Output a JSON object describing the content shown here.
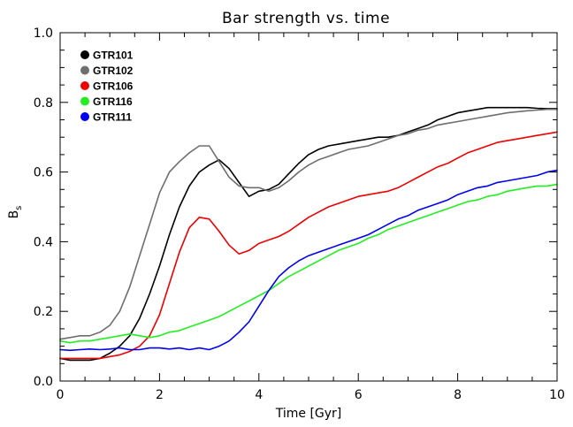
{
  "chart_data": {
    "type": "line",
    "title": "Bar strength vs. time",
    "xlabel": "Time [Gyr]",
    "ylabel": "B",
    "ylabel_sub": "s",
    "xlim": [
      0,
      10
    ],
    "ylim": [
      0,
      1.0
    ],
    "xticks": [
      0,
      2,
      4,
      6,
      8,
      10
    ],
    "xtick_labels": [
      "0",
      "2",
      "4",
      "6",
      "8",
      "10"
    ],
    "yticks": [
      0.0,
      0.2,
      0.4,
      0.6,
      0.8,
      1.0
    ],
    "ytick_labels": [
      "0.0",
      "0.2",
      "0.4",
      "0.6",
      "0.8",
      "1.0"
    ],
    "grid": false,
    "legend_position": "top-left",
    "series": [
      {
        "name": "GTR101",
        "color": "#000000",
        "x": [
          0,
          0.2,
          0.4,
          0.6,
          0.8,
          1.0,
          1.2,
          1.4,
          1.6,
          1.8,
          2.0,
          2.2,
          2.4,
          2.6,
          2.8,
          3.0,
          3.2,
          3.4,
          3.6,
          3.8,
          4.0,
          4.2,
          4.4,
          4.6,
          4.8,
          5.0,
          5.2,
          5.4,
          5.6,
          5.8,
          6.0,
          6.2,
          6.4,
          6.6,
          6.8,
          7.0,
          7.2,
          7.4,
          7.6,
          7.8,
          8.0,
          8.2,
          8.4,
          8.6,
          8.8,
          9.0,
          9.2,
          9.4,
          9.6,
          9.8,
          10.0
        ],
        "y": [
          0.065,
          0.06,
          0.06,
          0.06,
          0.065,
          0.08,
          0.1,
          0.13,
          0.18,
          0.25,
          0.33,
          0.42,
          0.5,
          0.56,
          0.6,
          0.62,
          0.635,
          0.61,
          0.57,
          0.53,
          0.545,
          0.55,
          0.565,
          0.595,
          0.625,
          0.65,
          0.665,
          0.675,
          0.68,
          0.685,
          0.69,
          0.695,
          0.7,
          0.7,
          0.705,
          0.715,
          0.725,
          0.735,
          0.75,
          0.76,
          0.77,
          0.775,
          0.78,
          0.785,
          0.785,
          0.785,
          0.785,
          0.785,
          0.783,
          0.782,
          0.782
        ]
      },
      {
        "name": "GTR102",
        "color": "#6e6e6e",
        "x": [
          0,
          0.2,
          0.4,
          0.6,
          0.8,
          1.0,
          1.2,
          1.4,
          1.6,
          1.8,
          2.0,
          2.2,
          2.4,
          2.6,
          2.8,
          3.0,
          3.2,
          3.4,
          3.6,
          3.8,
          4.0,
          4.2,
          4.4,
          4.6,
          4.8,
          5.0,
          5.2,
          5.4,
          5.6,
          5.8,
          6.0,
          6.2,
          6.4,
          6.6,
          6.8,
          7.0,
          7.2,
          7.4,
          7.6,
          7.8,
          8.0,
          8.2,
          8.4,
          8.6,
          8.8,
          9.0,
          9.2,
          9.4,
          9.6,
          9.8,
          10.0
        ],
        "y": [
          0.12,
          0.125,
          0.13,
          0.13,
          0.14,
          0.16,
          0.2,
          0.27,
          0.36,
          0.45,
          0.54,
          0.6,
          0.63,
          0.655,
          0.675,
          0.675,
          0.63,
          0.585,
          0.56,
          0.555,
          0.555,
          0.545,
          0.555,
          0.575,
          0.6,
          0.62,
          0.635,
          0.645,
          0.655,
          0.665,
          0.67,
          0.675,
          0.685,
          0.695,
          0.705,
          0.71,
          0.72,
          0.725,
          0.735,
          0.74,
          0.745,
          0.75,
          0.755,
          0.76,
          0.765,
          0.77,
          0.773,
          0.776,
          0.778,
          0.78,
          0.78
        ]
      },
      {
        "name": "GTR106",
        "color": "#ee0000",
        "x": [
          0,
          0.2,
          0.4,
          0.6,
          0.8,
          1.0,
          1.2,
          1.4,
          1.6,
          1.8,
          2.0,
          2.2,
          2.4,
          2.6,
          2.8,
          3.0,
          3.2,
          3.4,
          3.6,
          3.8,
          4.0,
          4.2,
          4.4,
          4.6,
          4.8,
          5.0,
          5.2,
          5.4,
          5.6,
          5.8,
          6.0,
          6.2,
          6.4,
          6.6,
          6.8,
          7.0,
          7.2,
          7.4,
          7.6,
          7.8,
          8.0,
          8.2,
          8.4,
          8.6,
          8.8,
          9.0,
          9.2,
          9.4,
          9.6,
          9.8,
          10.0
        ],
        "y": [
          0.065,
          0.065,
          0.065,
          0.065,
          0.065,
          0.07,
          0.075,
          0.085,
          0.1,
          0.13,
          0.19,
          0.28,
          0.37,
          0.44,
          0.47,
          0.465,
          0.43,
          0.39,
          0.365,
          0.375,
          0.395,
          0.405,
          0.415,
          0.43,
          0.45,
          0.47,
          0.485,
          0.5,
          0.51,
          0.52,
          0.53,
          0.535,
          0.54,
          0.545,
          0.555,
          0.57,
          0.585,
          0.6,
          0.615,
          0.625,
          0.64,
          0.655,
          0.665,
          0.675,
          0.685,
          0.69,
          0.695,
          0.7,
          0.705,
          0.71,
          0.715
        ]
      },
      {
        "name": "GTR116",
        "color": "#22ee22",
        "x": [
          0,
          0.2,
          0.4,
          0.6,
          0.8,
          1.0,
          1.2,
          1.4,
          1.6,
          1.8,
          2.0,
          2.2,
          2.4,
          2.6,
          2.8,
          3.0,
          3.2,
          3.4,
          3.6,
          3.8,
          4.0,
          4.2,
          4.4,
          4.6,
          4.8,
          5.0,
          5.2,
          5.4,
          5.6,
          5.8,
          6.0,
          6.2,
          6.4,
          6.6,
          6.8,
          7.0,
          7.2,
          7.4,
          7.6,
          7.8,
          8.0,
          8.2,
          8.4,
          8.6,
          8.8,
          9.0,
          9.2,
          9.4,
          9.6,
          9.8,
          10.0
        ],
        "y": [
          0.115,
          0.11,
          0.115,
          0.115,
          0.12,
          0.125,
          0.13,
          0.135,
          0.13,
          0.125,
          0.13,
          0.14,
          0.145,
          0.155,
          0.165,
          0.175,
          0.185,
          0.2,
          0.215,
          0.23,
          0.245,
          0.26,
          0.28,
          0.3,
          0.315,
          0.33,
          0.345,
          0.36,
          0.375,
          0.385,
          0.395,
          0.41,
          0.42,
          0.435,
          0.445,
          0.455,
          0.465,
          0.475,
          0.485,
          0.495,
          0.505,
          0.515,
          0.52,
          0.53,
          0.535,
          0.545,
          0.55,
          0.555,
          0.56,
          0.56,
          0.565
        ]
      },
      {
        "name": "GTR111",
        "color": "#0000ee",
        "x": [
          0,
          0.2,
          0.4,
          0.6,
          0.8,
          1.0,
          1.2,
          1.4,
          1.6,
          1.8,
          2.0,
          2.2,
          2.4,
          2.6,
          2.8,
          3.0,
          3.2,
          3.4,
          3.6,
          3.8,
          4.0,
          4.2,
          4.4,
          4.6,
          4.8,
          5.0,
          5.2,
          5.4,
          5.6,
          5.8,
          6.0,
          6.2,
          6.4,
          6.6,
          6.8,
          7.0,
          7.2,
          7.4,
          7.6,
          7.8,
          8.0,
          8.2,
          8.4,
          8.6,
          8.8,
          9.0,
          9.2,
          9.4,
          9.6,
          9.8,
          10.0
        ],
        "y": [
          0.09,
          0.088,
          0.09,
          0.092,
          0.09,
          0.092,
          0.095,
          0.09,
          0.09,
          0.095,
          0.095,
          0.092,
          0.095,
          0.09,
          0.095,
          0.09,
          0.1,
          0.115,
          0.14,
          0.17,
          0.215,
          0.26,
          0.3,
          0.325,
          0.345,
          0.36,
          0.37,
          0.38,
          0.39,
          0.4,
          0.41,
          0.42,
          0.435,
          0.45,
          0.465,
          0.475,
          0.49,
          0.5,
          0.51,
          0.52,
          0.535,
          0.545,
          0.555,
          0.56,
          0.57,
          0.575,
          0.58,
          0.585,
          0.59,
          0.6,
          0.605
        ]
      }
    ]
  }
}
